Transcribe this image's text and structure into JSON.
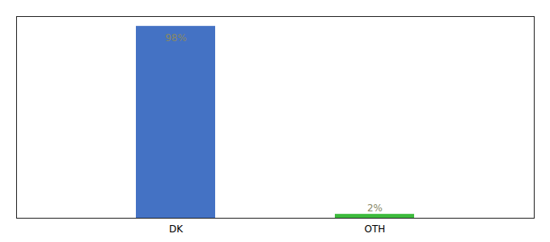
{
  "chart_data": {
    "type": "bar",
    "categories": [
      "DK",
      "OTH"
    ],
    "values": [
      98,
      2
    ],
    "value_labels": [
      "98%",
      "2%"
    ],
    "colors": [
      "#4472c4",
      "#3dbb3d"
    ],
    "ylim": [
      0,
      103
    ],
    "data_labels": true,
    "tick_labels": "x",
    "grid": false
  }
}
